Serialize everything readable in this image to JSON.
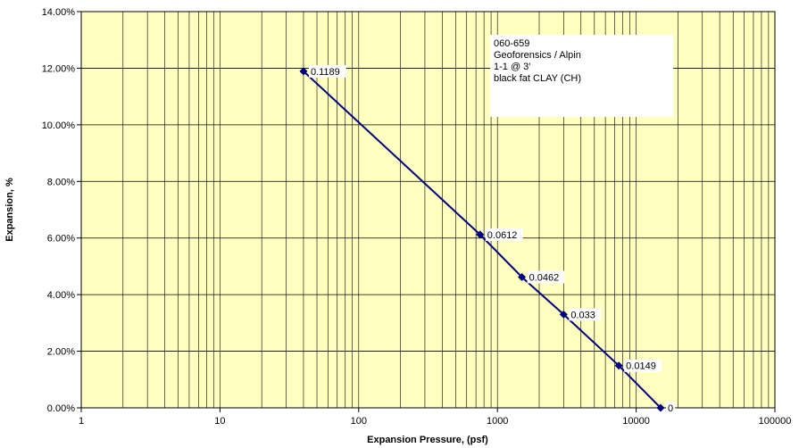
{
  "chart_data": {
    "type": "scatter",
    "xlabel": "Expansion Pressure, (psf)",
    "ylabel": "Expansion, %",
    "x_scale": "log",
    "xlim": [
      1,
      100000
    ],
    "ylim": [
      0,
      0.14
    ],
    "x_ticks": [
      "1",
      "10",
      "100",
      "1000",
      "10000",
      "100000"
    ],
    "y_ticks": [
      "0.00%",
      "2.00%",
      "4.00%",
      "6.00%",
      "8.00%",
      "10.00%",
      "12.00%",
      "14.00%"
    ],
    "grid": true,
    "plot_background": "#ffffc0",
    "series_color": "#000080",
    "series": [
      {
        "x": [
          40,
          750,
          1500,
          3000,
          7500,
          15000
        ],
        "y": [
          0.1189,
          0.0612,
          0.0462,
          0.033,
          0.0149,
          0
        ],
        "data_labels": [
          "0.1189",
          "0.0612",
          "0.0462",
          "0.033",
          "0.0149",
          "0"
        ]
      }
    ],
    "annotation": {
      "lines": [
        "060-659",
        "Geoforensics / Alpin",
        "1-1 @ 3'",
        "black fat CLAY (CH)"
      ],
      "placement": "top-right"
    }
  }
}
